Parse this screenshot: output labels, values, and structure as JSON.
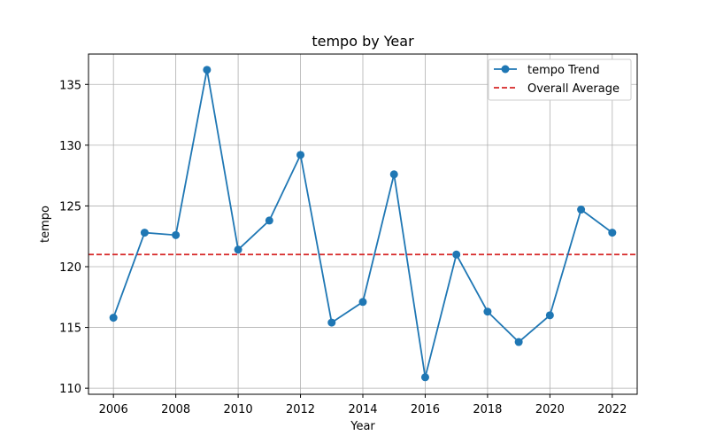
{
  "chart_data": {
    "type": "line",
    "title": "tempo by Year",
    "xlabel": "Year",
    "ylabel": "tempo",
    "x": [
      2006,
      2007,
      2008,
      2009,
      2010,
      2011,
      2012,
      2013,
      2014,
      2015,
      2016,
      2017,
      2018,
      2019,
      2020,
      2021,
      2022
    ],
    "series": [
      {
        "name": "tempo Trend",
        "color": "#1f77b4",
        "values": [
          115.8,
          122.8,
          122.6,
          136.2,
          121.4,
          123.8,
          129.2,
          115.4,
          117.1,
          127.6,
          110.9,
          121.0,
          116.3,
          113.8,
          116.0,
          124.7,
          122.8
        ]
      }
    ],
    "reference_line": {
      "name": "Overall Average",
      "value": 121.0,
      "color": "#d62728",
      "style": "dashed"
    },
    "xlim": [
      2005.2,
      2022.8
    ],
    "ylim": [
      109.5,
      137.5
    ],
    "xticks": [
      2006,
      2008,
      2010,
      2012,
      2014,
      2016,
      2018,
      2020,
      2022
    ],
    "yticks": [
      110,
      115,
      120,
      125,
      130,
      135
    ],
    "grid": true,
    "legend_position": "top-right"
  }
}
